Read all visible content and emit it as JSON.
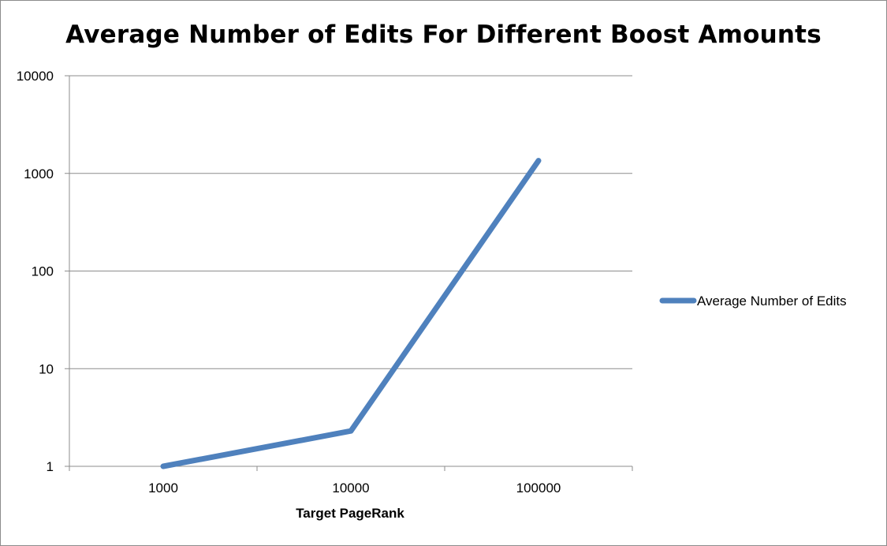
{
  "chart_data": {
    "type": "line",
    "title": "Average Number of Edits For Different Boost Amounts",
    "xlabel": "Target PageRank",
    "ylabel": "",
    "categories": [
      "1000",
      "10000",
      "100000"
    ],
    "series": [
      {
        "name": "Average Number of Edits",
        "values": [
          1,
          2.3,
          1350
        ],
        "color": "#4f81bd"
      }
    ],
    "y_scale": "log",
    "ylim": [
      1,
      10000
    ],
    "y_ticks": [
      1,
      10,
      100,
      1000,
      10000
    ],
    "y_tick_labels": [
      "1",
      "10",
      "100",
      "1000",
      "10000"
    ],
    "grid": "horizontal",
    "legend_position": "right"
  }
}
